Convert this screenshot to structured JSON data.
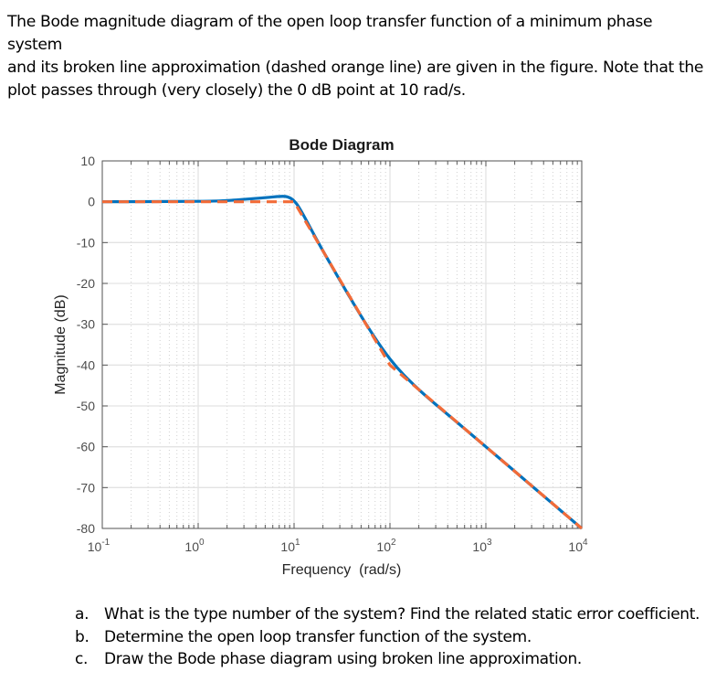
{
  "intro": {
    "line1": "The Bode magnitude diagram of the open loop transfer function of a minimum phase system",
    "line2": "and its broken line approximation (dashed orange line) are given in the figure. Note that the",
    "line3": "plot passes through (very closely) the 0 dB point at 10 rad/s."
  },
  "questions": [
    {
      "label": "a.",
      "text": "What is the type number of the system? Find the related static error coefficient."
    },
    {
      "label": "b.",
      "text": "Determine the open loop transfer function of the system."
    },
    {
      "label": "c.",
      "text": "Draw the Bode phase diagram using broken line approximation."
    }
  ],
  "colors": {
    "actual": "#0072BD",
    "asymptote": "#F26B38",
    "grid_major": "#e3e3e3",
    "grid_minor": "#d0d0d0",
    "axis": "#595959"
  },
  "chart_data": {
    "type": "line",
    "title": "Bode Diagram",
    "xlabel": "Frequency  (rad/s)",
    "ylabel": "Magnitude (dB)",
    "xscale": "log",
    "xlim": [
      0.1,
      10000
    ],
    "ylim": [
      -80,
      10
    ],
    "xticks": [
      {
        "base": "10",
        "exp": "-1"
      },
      {
        "base": "10",
        "exp": "0"
      },
      {
        "base": "10",
        "exp": "1"
      },
      {
        "base": "10",
        "exp": "2"
      },
      {
        "base": "10",
        "exp": "3"
      },
      {
        "base": "10",
        "exp": "4"
      }
    ],
    "yticks": [
      "10",
      "0",
      "-10",
      "-20",
      "-30",
      "-40",
      "-50",
      "-60",
      "-70",
      "-80"
    ],
    "grid": true,
    "legend": null,
    "series": [
      {
        "name": "Exact magnitude (solid blue)",
        "style": "solid",
        "x": [
          0.1,
          1,
          2,
          5,
          7,
          8.5,
          10,
          12,
          20,
          50,
          100,
          200,
          500,
          1000,
          2000,
          5000,
          10000
        ],
        "y": [
          0,
          0.1,
          0.3,
          1.0,
          1.3,
          1.2,
          0.2,
          -2.5,
          -12,
          -28,
          -38.5,
          -46,
          -54,
          -60,
          -66,
          -74,
          -80
        ]
      },
      {
        "name": "Broken line approximation (dashed orange)",
        "style": "dashed",
        "x": [
          0.1,
          10,
          100,
          10000
        ],
        "y": [
          0,
          0,
          -40,
          -80
        ]
      }
    ],
    "annotations": []
  }
}
